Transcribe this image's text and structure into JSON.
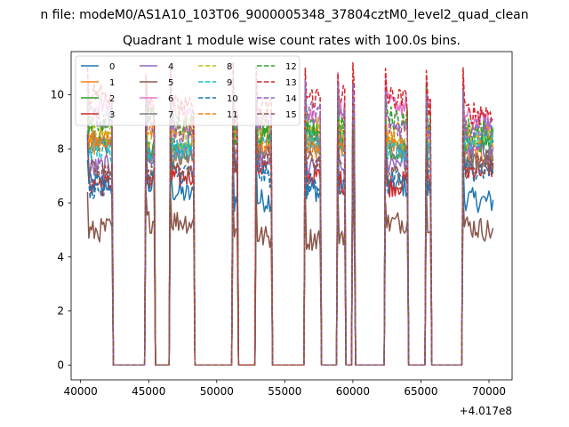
{
  "chart_data": {
    "type": "line",
    "suptitle": "n file: modeM0/AS1A10_103T06_9000005348_37804cztM0_level2_quad_clean",
    "title": "Quadrant 1 module wise count rates with 100.0s bins.",
    "xlabel": "",
    "ylabel": "",
    "x_offset_label": "+4.017e8",
    "xlim": [
      39300,
      71700
    ],
    "ylim": [
      -0.55,
      11.6
    ],
    "xticks": [
      40000,
      45000,
      50000,
      55000,
      60000,
      65000,
      70000
    ],
    "xtick_labels": [
      "40000",
      "45000",
      "50000",
      "55000",
      "60000",
      "65000",
      "70000"
    ],
    "yticks": [
      0,
      2,
      4,
      6,
      8,
      10
    ],
    "ytick_labels": [
      "0",
      "2",
      "4",
      "6",
      "8",
      "10"
    ],
    "grid": false,
    "legend_position": "upper-left",
    "legend_columns": 4,
    "bin_seconds": 100,
    "on_segments": [
      [
        40500,
        42300
      ],
      [
        44800,
        45400
      ],
      [
        46600,
        48300
      ],
      [
        51200,
        51500
      ],
      [
        52900,
        54000
      ],
      [
        56500,
        57600
      ],
      [
        58900,
        59400
      ],
      [
        60000,
        60100
      ],
      [
        62400,
        64000
      ],
      [
        65400,
        65700
      ],
      [
        68100,
        70300
      ]
    ],
    "series": [
      {
        "name": "0",
        "level": 6.4,
        "color": "#1f77b4",
        "dashed": false
      },
      {
        "name": "1",
        "level": 8.1,
        "color": "#ff7f0e",
        "dashed": false
      },
      {
        "name": "2",
        "level": 8.3,
        "color": "#2ca02c",
        "dashed": false
      },
      {
        "name": "3",
        "level": 7.0,
        "color": "#d62728",
        "dashed": false
      },
      {
        "name": "4",
        "level": 7.6,
        "color": "#9467bd",
        "dashed": false
      },
      {
        "name": "5",
        "level": 5.0,
        "color": "#8c564b",
        "dashed": false
      },
      {
        "name": "6",
        "level": 9.3,
        "color": "#e377c2",
        "dashed": false
      },
      {
        "name": "7",
        "level": 7.9,
        "color": "#7f7f7f",
        "dashed": false
      },
      {
        "name": "8",
        "level": 8.6,
        "color": "#bcbd22",
        "dashed": true
      },
      {
        "name": "9",
        "level": 8.2,
        "color": "#17becf",
        "dashed": true
      },
      {
        "name": "10",
        "level": 6.9,
        "color": "#1f77b4",
        "dashed": true
      },
      {
        "name": "11",
        "level": 8.4,
        "color": "#ff7f0e",
        "dashed": true
      },
      {
        "name": "12",
        "level": 8.8,
        "color": "#2ca02c",
        "dashed": true
      },
      {
        "name": "13",
        "level": 9.7,
        "color": "#d62728",
        "dashed": true
      },
      {
        "name": "14",
        "level": 9.0,
        "color": "#9467bd",
        "dashed": true
      },
      {
        "name": "15",
        "level": 7.3,
        "color": "#8c564b",
        "dashed": true
      }
    ]
  }
}
